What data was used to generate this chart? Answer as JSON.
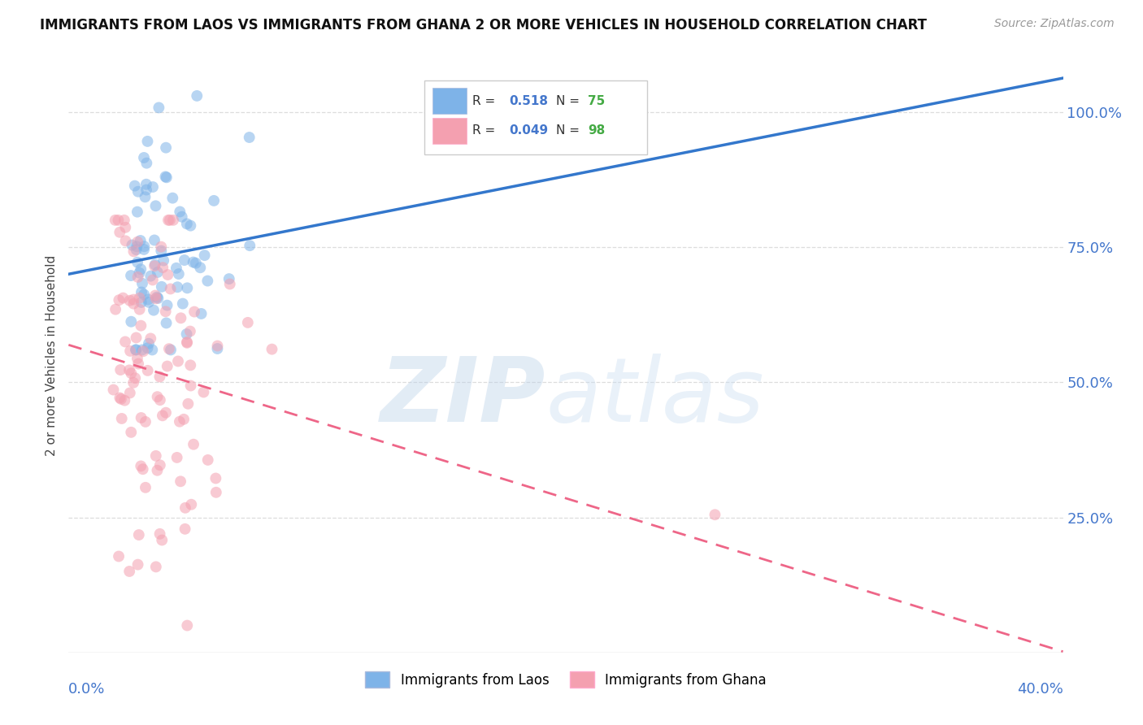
{
  "title": "IMMIGRANTS FROM LAOS VS IMMIGRANTS FROM GHANA 2 OR MORE VEHICLES IN HOUSEHOLD CORRELATION CHART",
  "source": "Source: ZipAtlas.com",
  "ylabel_ticks": [
    0.25,
    0.5,
    0.75,
    1.0
  ],
  "ylabel_labels": [
    "25.0%",
    "50.0%",
    "75.0%",
    "100.0%"
  ],
  "xlim": [
    0.0,
    0.4
  ],
  "ylim": [
    0.0,
    1.1
  ],
  "laos_color": "#7EB3E8",
  "ghana_color": "#F4A0B0",
  "laos_R": 0.518,
  "laos_N": 75,
  "ghana_R": 0.049,
  "ghana_N": 98,
  "R_color": "#4477CC",
  "N_color": "#44AA44",
  "trend_line_laos_color": "#3377CC",
  "trend_line_ghana_color": "#EE6688",
  "legend_label_laos": "Immigrants from Laos",
  "legend_label_ghana": "Immigrants from Ghana",
  "background_color": "#FFFFFF",
  "grid_color": "#DDDDDD"
}
